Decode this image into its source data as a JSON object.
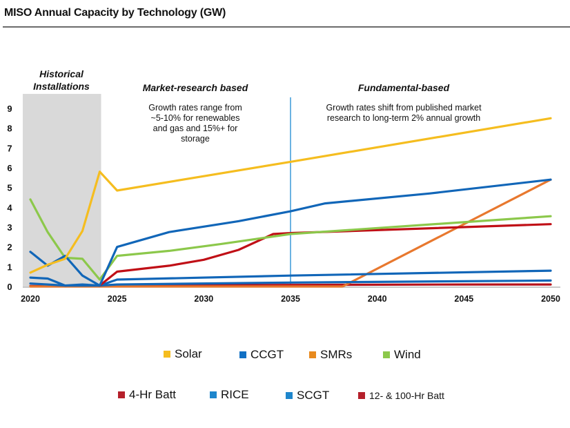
{
  "title": "MISO Annual Capacity by Technology (GW)",
  "chart_data": {
    "type": "line",
    "title": "MISO Annual Capacity by Technology (GW)",
    "xlabel": "",
    "ylabel": "",
    "xlim": [
      2020,
      2050
    ],
    "ylim": [
      0,
      9
    ],
    "xticks": [
      2020,
      2025,
      2030,
      2035,
      2040,
      2045,
      2050
    ],
    "yticks": [
      0,
      1,
      2,
      3,
      4,
      5,
      6,
      7,
      8,
      9
    ],
    "grid": false,
    "legend_position": "bottom",
    "annotations": {
      "historical": {
        "title_line1": "Historical",
        "title_line2": "Installations",
        "x_range": [
          2020,
          2024
        ]
      },
      "market": {
        "title": "Market-research based",
        "lines": [
          "Growth rates range from",
          "~5-10% for renewables",
          "and gas and 15%+ for",
          "storage"
        ]
      },
      "fundamental": {
        "title": "Fundamental-based",
        "lines": [
          "Growth rates shift from published market",
          "research to long-term 2% annual growth"
        ]
      },
      "divider_year": 2035
    },
    "series": [
      {
        "name": "Solar",
        "color": "#F5BD1F",
        "points": [
          [
            2020,
            0.7
          ],
          [
            2021,
            1.1
          ],
          [
            2022,
            1.4
          ],
          [
            2023,
            2.8
          ],
          [
            2024,
            5.8
          ],
          [
            2025,
            4.85
          ],
          [
            2035,
            6.3
          ],
          [
            2050,
            8.5
          ]
        ]
      },
      {
        "name": "CCGT",
        "color": "#1166B8",
        "points": [
          [
            2020,
            1.75
          ],
          [
            2021,
            1.05
          ],
          [
            2022,
            1.55
          ],
          [
            2023,
            0.55
          ],
          [
            2024,
            0.05
          ],
          [
            2025,
            2.0
          ],
          [
            2028,
            2.75
          ],
          [
            2032,
            3.3
          ],
          [
            2035,
            3.8
          ],
          [
            2037,
            4.2
          ],
          [
            2043,
            4.7
          ],
          [
            2050,
            5.4
          ]
        ]
      },
      {
        "name": "SMRs",
        "color": "#E8782E",
        "points": [
          [
            2020,
            0
          ],
          [
            2038,
            0
          ],
          [
            2050,
            5.4
          ]
        ]
      },
      {
        "name": "Wind",
        "color": "#8CC84B",
        "points": [
          [
            2020,
            4.4
          ],
          [
            2021,
            2.75
          ],
          [
            2022,
            1.45
          ],
          [
            2023,
            1.4
          ],
          [
            2024,
            0.35
          ],
          [
            2025,
            1.55
          ],
          [
            2028,
            1.8
          ],
          [
            2031,
            2.15
          ],
          [
            2035,
            2.65
          ],
          [
            2050,
            3.55
          ]
        ]
      },
      {
        "name": "4-Hr Batt",
        "color": "#C00F16",
        "points": [
          [
            2024,
            0.05
          ],
          [
            2025,
            0.75
          ],
          [
            2028,
            1.05
          ],
          [
            2030,
            1.35
          ],
          [
            2032,
            1.85
          ],
          [
            2034,
            2.65
          ],
          [
            2035,
            2.7
          ],
          [
            2050,
            3.15
          ]
        ]
      },
      {
        "name": "RICE",
        "color": "#1166B8",
        "points": [
          [
            2020,
            0.45
          ],
          [
            2021,
            0.4
          ],
          [
            2022,
            0.05
          ],
          [
            2023,
            0.05
          ],
          [
            2024,
            0.05
          ],
          [
            2025,
            0.35
          ],
          [
            2035,
            0.55
          ],
          [
            2050,
            0.8
          ]
        ]
      },
      {
        "name": "SCGT",
        "color": "#1166B8",
        "points": [
          [
            2020,
            0.15
          ],
          [
            2021,
            0.1
          ],
          [
            2022,
            0.05
          ],
          [
            2023,
            0.1
          ],
          [
            2024,
            0.05
          ],
          [
            2025,
            0.1
          ],
          [
            2035,
            0.2
          ],
          [
            2050,
            0.3
          ]
        ]
      },
      {
        "name": "12- & 100-Hr Batt",
        "color": "#B5121B",
        "points": [
          [
            2020,
            0.02
          ],
          [
            2024,
            0.02
          ],
          [
            2025,
            0.05
          ],
          [
            2035,
            0.08
          ],
          [
            2045,
            0.1
          ],
          [
            2050,
            0.1
          ]
        ]
      }
    ]
  },
  "legend": {
    "row1": [
      {
        "label": "Solar",
        "color": "#F5BD1F"
      },
      {
        "label": "CCGT",
        "color": "#1170C4"
      },
      {
        "label": "SMRs",
        "color": "#E88A1E"
      },
      {
        "label": "Wind",
        "color": "#8CC84B"
      }
    ],
    "row2": [
      {
        "label": "4-Hr Batt",
        "color": "#B5202B"
      },
      {
        "label": "RICE",
        "color": "#1E86CC"
      },
      {
        "label": "SCGT",
        "color": "#1E86CC"
      },
      {
        "label": "12- & 100-Hr Batt",
        "color": "#B5202B"
      }
    ]
  }
}
